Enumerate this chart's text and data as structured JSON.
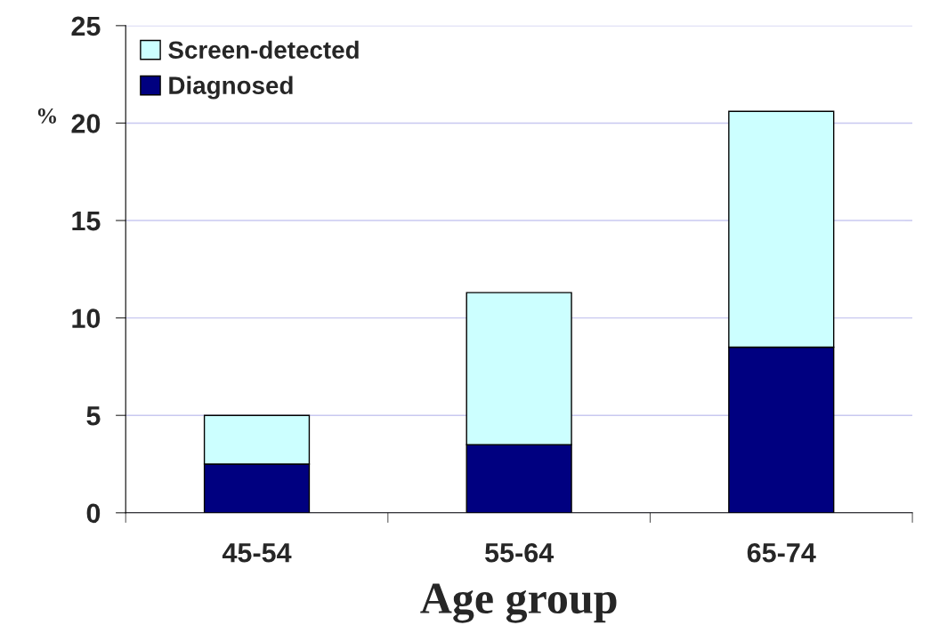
{
  "chart_data": {
    "type": "bar",
    "stacked": true,
    "categories": [
      "45-54",
      "55-64",
      "65-74"
    ],
    "series": [
      {
        "name": "Diagnosed",
        "color": "#000080",
        "values": [
          2.5,
          3.5,
          8.5
        ]
      },
      {
        "name": "Screen-detected",
        "color": "#ccffff",
        "values": [
          2.5,
          7.8,
          12.1
        ]
      }
    ],
    "xlabel": "Age group",
    "ylabel": "%",
    "ylim": [
      0,
      25
    ],
    "yticks": [
      0,
      5,
      10,
      15,
      20,
      25
    ],
    "grid": "y",
    "legend": "top left"
  }
}
